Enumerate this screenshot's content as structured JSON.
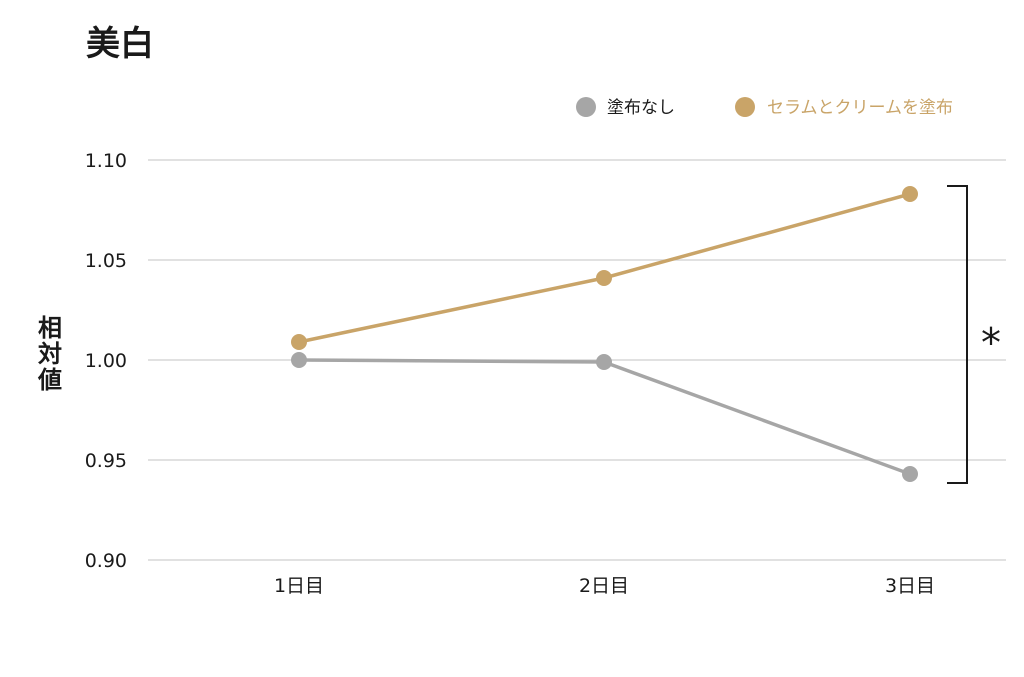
{
  "chart_data": {
    "type": "line",
    "title": "美白",
    "ylabel": [
      "相",
      "対",
      "値"
    ],
    "categories": [
      "1日目",
      "2日目",
      "3日目"
    ],
    "yticks": [
      "1.10",
      "1.05",
      "1.00",
      "0.95",
      "0.90"
    ],
    "ylim": [
      0.9,
      1.1
    ],
    "grid": true,
    "legend_position": "top-right",
    "series": [
      {
        "name": "塗布なし",
        "color": "#a6a6a6",
        "values": [
          1.0,
          0.999,
          0.943
        ]
      },
      {
        "name": "セラムとクリームを塗布",
        "color": "#c9a468",
        "values": [
          1.009,
          1.041,
          1.083
        ]
      }
    ],
    "annotation": {
      "label": "*",
      "between_category": "3日目"
    }
  }
}
